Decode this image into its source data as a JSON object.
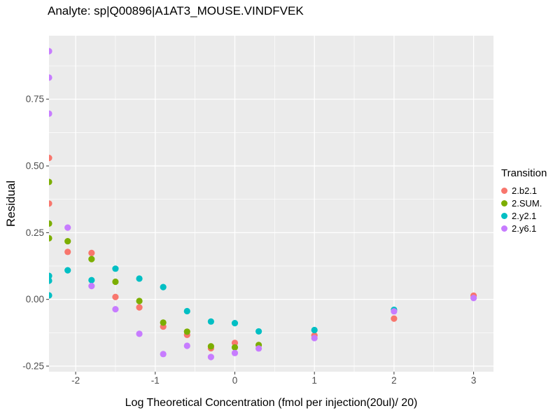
{
  "chart_data": {
    "type": "scatter",
    "title": "Analyte: sp|Q00896|A1AT3_MOUSE.VINDFVEK",
    "xlabel": "Log Theoretical Concentration (fmol per injection(20ul)/ 20)",
    "ylabel": "Residual",
    "legend_title": "Transition",
    "legend_position": "right",
    "grid": true,
    "panel_bg": "#EBEBEB",
    "grid_color": "#FFFFFF",
    "tick_label_color": "#4D4D4D",
    "xlim": [
      -2.335,
      3.25
    ],
    "ylim": [
      -0.271,
      0.988
    ],
    "x_ticks": [
      {
        "value": -2,
        "label": "-2"
      },
      {
        "value": -1,
        "label": "-1"
      },
      {
        "value": 0,
        "label": "0"
      },
      {
        "value": 1,
        "label": "1"
      },
      {
        "value": 2,
        "label": "2"
      },
      {
        "value": 3,
        "label": "3"
      }
    ],
    "x_minor": [
      -1.5,
      -0.5,
      0.5,
      1.5,
      2.5
    ],
    "y_ticks": [
      {
        "value": -0.25,
        "label": "-0.25"
      },
      {
        "value": 0.0,
        "label": "0.00"
      },
      {
        "value": 0.25,
        "label": "0.25"
      },
      {
        "value": 0.5,
        "label": "0.50"
      },
      {
        "value": 0.75,
        "label": "0.75"
      }
    ],
    "y_minor": [
      -0.125,
      0.125,
      0.375,
      0.625,
      0.875
    ],
    "series": [
      {
        "name": "2.b2.1",
        "color": "#F8766D",
        "points": [
          [
            -2.335,
            0.53
          ],
          [
            -2.335,
            0.359
          ],
          [
            -2.1,
            0.178
          ],
          [
            -1.8,
            0.174
          ],
          [
            -1.5,
            0.009
          ],
          [
            -1.2,
            -0.03
          ],
          [
            -0.9,
            -0.102
          ],
          [
            -0.6,
            -0.133
          ],
          [
            -0.3,
            -0.183
          ],
          [
            0.0,
            -0.163
          ],
          [
            1.0,
            -0.135
          ],
          [
            2.0,
            -0.072
          ],
          [
            3.0,
            0.014
          ]
        ]
      },
      {
        "name": "2.SUM.",
        "color": "#7CAE00",
        "points": [
          [
            -2.335,
            0.44
          ],
          [
            -2.335,
            0.284
          ],
          [
            -2.335,
            0.229
          ],
          [
            -2.1,
            0.218
          ],
          [
            -1.8,
            0.151
          ],
          [
            -1.5,
            0.066
          ],
          [
            -1.2,
            -0.006
          ],
          [
            -0.9,
            -0.087
          ],
          [
            -0.6,
            -0.121
          ],
          [
            -0.3,
            -0.176
          ],
          [
            0.0,
            -0.18
          ],
          [
            0.3,
            -0.171
          ]
        ]
      },
      {
        "name": "2.y2.1",
        "color": "#00BFC4",
        "points": [
          [
            -2.335,
            0.088
          ],
          [
            -2.335,
            0.07
          ],
          [
            -2.335,
            0.015
          ],
          [
            -2.1,
            0.109
          ],
          [
            -1.8,
            0.072
          ],
          [
            -1.5,
            0.115
          ],
          [
            -1.2,
            0.078
          ],
          [
            -0.9,
            0.046
          ],
          [
            -0.6,
            -0.044
          ],
          [
            -0.3,
            -0.083
          ],
          [
            0.0,
            -0.089
          ],
          [
            0.3,
            -0.12
          ],
          [
            1.0,
            -0.115
          ],
          [
            2.0,
            -0.039
          ]
        ]
      },
      {
        "name": "2.y6.1",
        "color": "#C77CFF",
        "points": [
          [
            -2.335,
            0.93
          ],
          [
            -2.335,
            0.831
          ],
          [
            -2.335,
            0.696
          ],
          [
            -2.1,
            0.269
          ],
          [
            -1.8,
            0.05
          ],
          [
            -1.5,
            -0.037
          ],
          [
            -1.2,
            -0.129
          ],
          [
            -0.9,
            -0.205
          ],
          [
            -0.6,
            -0.174
          ],
          [
            -0.3,
            -0.216
          ],
          [
            0.0,
            -0.201
          ],
          [
            0.3,
            -0.184
          ],
          [
            1.0,
            -0.145
          ],
          [
            2.0,
            -0.045
          ],
          [
            3.0,
            0.005
          ]
        ]
      }
    ]
  }
}
